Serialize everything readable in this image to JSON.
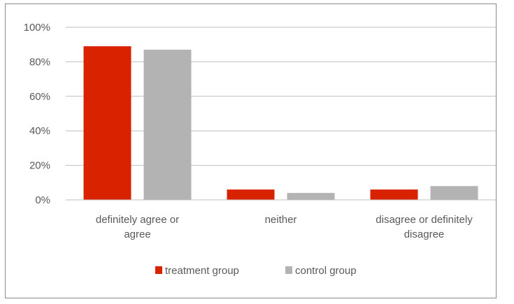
{
  "chart_data": {
    "type": "bar",
    "title": "",
    "xlabel": "",
    "ylabel": "",
    "categories": [
      [
        "definitely agree or",
        "agree"
      ],
      [
        "neither"
      ],
      [
        "disagree or definitely",
        "disagree"
      ]
    ],
    "series": [
      {
        "name": "treatment group",
        "color": "#d92300",
        "values": [
          89,
          6,
          6
        ]
      },
      {
        "name": "control group",
        "color": "#b3b3b3",
        "values": [
          87,
          4,
          8
        ]
      }
    ],
    "ylim": [
      0,
      100
    ],
    "yticks": [
      0,
      20,
      40,
      60,
      80,
      100
    ],
    "ytick_labels": [
      "0%",
      "20%",
      "40%",
      "60%",
      "80%",
      "100%"
    ],
    "grid": true,
    "legend_position": "bottom"
  }
}
